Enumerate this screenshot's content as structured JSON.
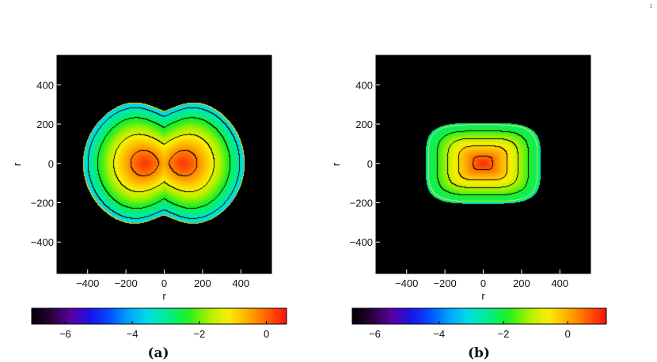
{
  "page_marker": "1",
  "colormap": {
    "stops": [
      "#000000",
      "#2a003a",
      "#5a00a0",
      "#1a10e8",
      "#0050ff",
      "#00a8ff",
      "#00e0e0",
      "#00ee8a",
      "#20f020",
      "#a8f000",
      "#f8f000",
      "#ffb000",
      "#ff6000",
      "#ff1010"
    ],
    "contour_color": "#000000",
    "outer_contour_color": "#f0e000"
  },
  "chart_data": [
    {
      "type": "heatmap",
      "panel_label": "(a)",
      "xlabel": "r",
      "ylabel": "r",
      "xlim": [
        -560,
        560
      ],
      "ylim": [
        -560,
        550
      ],
      "xticks": [
        -400,
        -200,
        0,
        200,
        400
      ],
      "yticks": [
        -400,
        -200,
        0,
        200,
        400
      ],
      "colorbar": {
        "range": [
          -7,
          0.6
        ],
        "ticks": [
          -6,
          -4,
          -2,
          0
        ]
      },
      "field": {
        "shape": "double-lobe",
        "lobe_centers": [
          -100,
          100
        ],
        "lobe_radius": 320,
        "waist": 0.78,
        "peak_value": 0.3,
        "edge_value": -3.7
      },
      "contour_levels": [
        -3.7,
        -3.3,
        -2.5,
        -1.3,
        -0.25
      ]
    },
    {
      "type": "heatmap",
      "panel_label": "(b)",
      "xlabel": "r",
      "ylabel": "r",
      "xlim": [
        -560,
        560
      ],
      "ylim": [
        -560,
        550
      ],
      "xticks": [
        -400,
        -200,
        0,
        200,
        400
      ],
      "yticks": [
        -400,
        -200,
        0,
        200,
        400
      ],
      "colorbar": {
        "range": [
          -6.7,
          1.2
        ],
        "ticks": [
          -6,
          -4,
          -2,
          0
        ]
      },
      "field": {
        "shape": "oval",
        "half_width": 300,
        "half_height": 205,
        "squareness": 3,
        "peak_value": 1.0,
        "edge_value": -2.6
      },
      "contour_levels": [
        -2.4,
        -1.8,
        -1.1,
        -0.4,
        0.5
      ]
    }
  ]
}
